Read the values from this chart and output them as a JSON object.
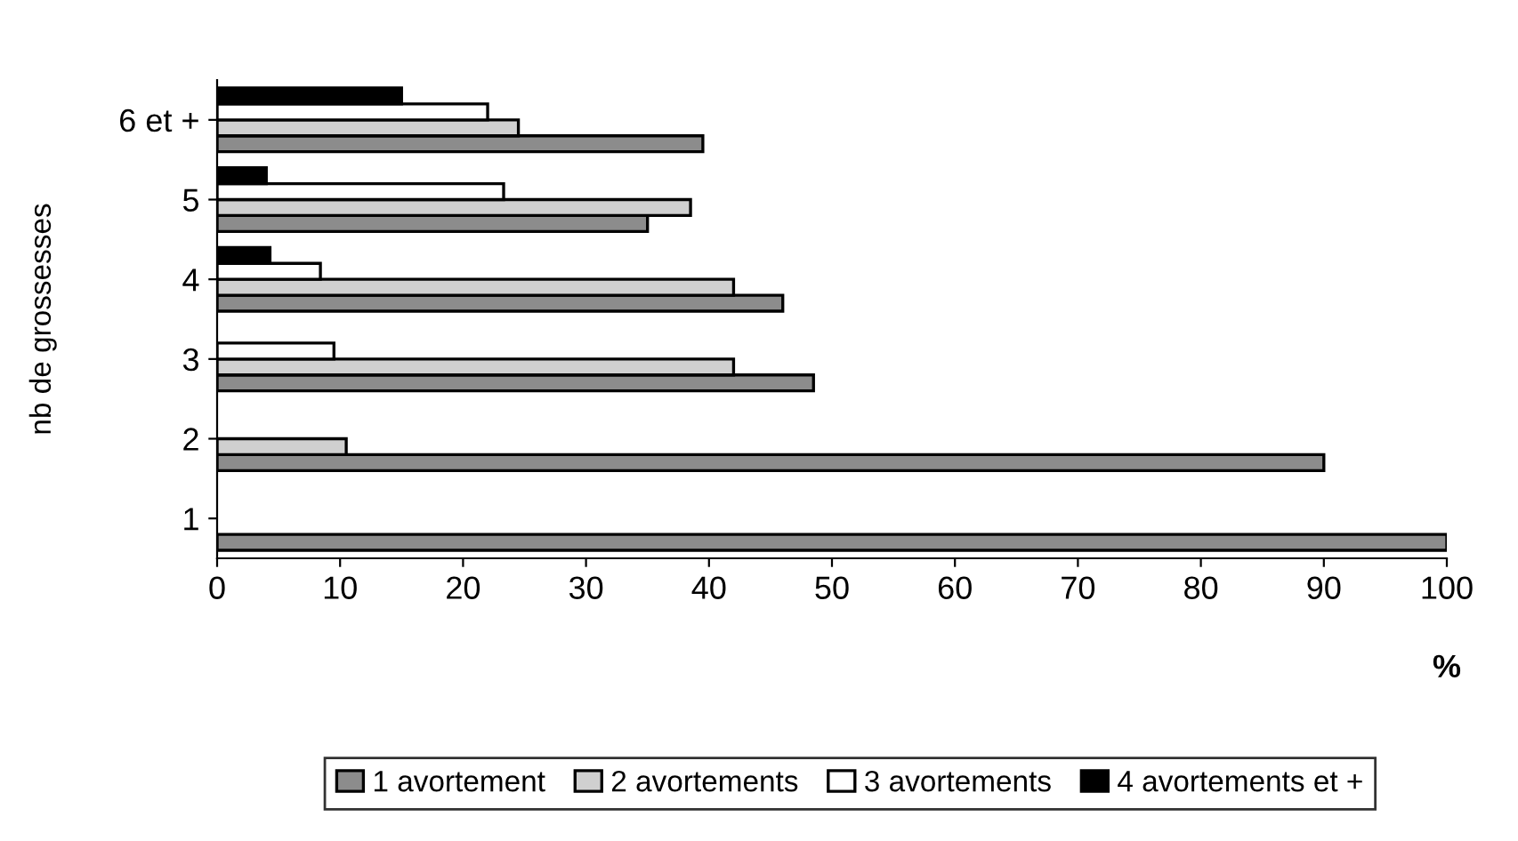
{
  "chart_data": {
    "type": "bar",
    "orientation": "horizontal",
    "ylabel": "nb de grossesses",
    "xlabel": "%",
    "categories": [
      "6 et +",
      "5",
      "4",
      "3",
      "2",
      "1"
    ],
    "series": [
      {
        "name": "1 avortement",
        "color": "#8c8c8c",
        "values": [
          39.5,
          35,
          46,
          48.5,
          90,
          100
        ]
      },
      {
        "name": "2 avortements",
        "color": "#d0d0d0",
        "values": [
          24.5,
          38.5,
          42,
          42,
          10.5,
          null
        ]
      },
      {
        "name": "3 avortements",
        "color": "#ffffff",
        "values": [
          22,
          23.3,
          8.4,
          9.5,
          null,
          null
        ]
      },
      {
        "name": "4 avortements et +",
        "color": "#000000",
        "values": [
          15,
          4,
          4.3,
          null,
          null,
          null
        ]
      }
    ],
    "xlim": [
      0,
      100
    ],
    "xticks": [
      0,
      10,
      20,
      30,
      40,
      50,
      60,
      70,
      80,
      90,
      100
    ],
    "grid": false,
    "legend": "bottom"
  }
}
